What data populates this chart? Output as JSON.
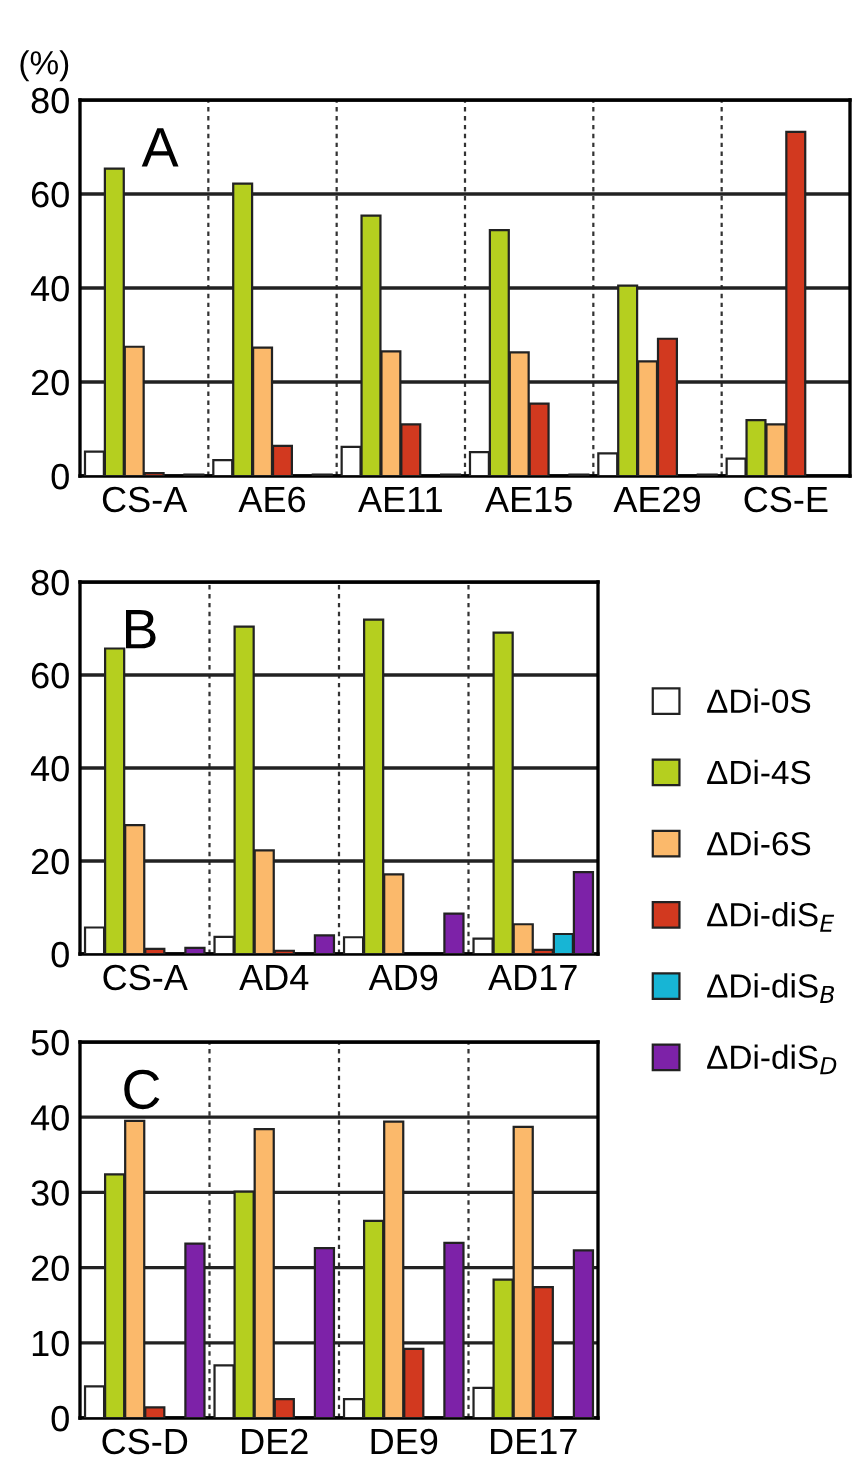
{
  "chart_data": [
    {
      "type": "bar",
      "ylabel": "(%)",
      "annotations": [
        "A"
      ],
      "categories": [
        "CS-A",
        "AE6",
        "AE11",
        "AE15",
        "AE29",
        "CS-E"
      ],
      "ylim": [
        0,
        80
      ],
      "yticks": [
        0,
        20,
        40,
        60,
        80
      ],
      "grid": "y",
      "legend": false,
      "series": [
        {
          "color": "#ffffff",
          "values": [
            5.2,
            3.4,
            6.2,
            5.1,
            4.8,
            3.7
          ]
        },
        {
          "color": "#b5cf1f",
          "values": [
            65.4,
            62.2,
            55.4,
            52.3,
            40.5,
            11.9
          ]
        },
        {
          "color": "#fbb96b",
          "values": [
            27.5,
            27.3,
            26.5,
            26.3,
            24.4,
            11.0
          ]
        },
        {
          "color": "#d2391f",
          "values": [
            0.6,
            6.4,
            11.0,
            15.4,
            29.2,
            73.2
          ]
        },
        {
          "color": "#17b5d5",
          "values": [
            null,
            null,
            null,
            null,
            null,
            null
          ]
        },
        {
          "color": "#7d22a8",
          "values": [
            0.3,
            0.3,
            0.3,
            0.3,
            0.3,
            null
          ]
        }
      ]
    },
    {
      "type": "bar",
      "annotations": [
        "B"
      ],
      "categories": [
        "CS-A",
        "AD4",
        "AD9",
        "AD17"
      ],
      "ylim": [
        0,
        80
      ],
      "yticks": [
        0,
        20,
        40,
        60,
        80
      ],
      "grid": "y",
      "legend": "right",
      "series": [
        {
          "name": "ΔDi-0S",
          "color": "#ffffff",
          "values": [
            5.7,
            3.7,
            3.6,
            3.3
          ]
        },
        {
          "name": "ΔDi-4S",
          "color": "#b5cf1f",
          "values": [
            65.7,
            70.4,
            71.9,
            69.1
          ]
        },
        {
          "name": "ΔDi-6S",
          "color": "#fbb96b",
          "values": [
            27.7,
            22.3,
            17.1,
            6.4
          ]
        },
        {
          "name": "ΔDi-diS$_{E}$",
          "color": "#d2391f",
          "values": [
            1.1,
            0.7,
            null,
            0.9
          ]
        },
        {
          "name": "ΔDi-diS$_{B}$",
          "color": "#17b5d5",
          "values": [
            null,
            null,
            null,
            4.3
          ]
        },
        {
          "name": "ΔDi-diS$_{D}$",
          "color": "#7d22a8",
          "values": [
            1.3,
            4.0,
            8.7,
            17.6
          ]
        }
      ]
    },
    {
      "type": "bar",
      "annotations": [
        "C"
      ],
      "categories": [
        "CS-D",
        "DE2",
        "DE9",
        "DE17"
      ],
      "ylim": [
        0,
        50
      ],
      "yticks": [
        0,
        10,
        20,
        30,
        40,
        50
      ],
      "grid": "y",
      "legend": false,
      "series": [
        {
          "color": "#ffffff",
          "values": [
            4.2,
            7.0,
            2.5,
            4.0
          ]
        },
        {
          "color": "#b5cf1f",
          "values": [
            32.4,
            30.1,
            26.2,
            18.4
          ]
        },
        {
          "color": "#fbb96b",
          "values": [
            39.5,
            38.4,
            39.4,
            38.7
          ]
        },
        {
          "color": "#d2391f",
          "values": [
            1.4,
            2.5,
            9.2,
            17.4
          ]
        },
        {
          "color": "#17b5d5",
          "values": [
            null,
            null,
            null,
            null
          ]
        },
        {
          "color": "#7d22a8",
          "values": [
            23.2,
            22.6,
            23.3,
            22.3
          ]
        }
      ]
    }
  ]
}
